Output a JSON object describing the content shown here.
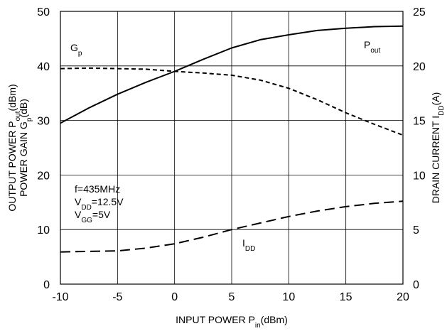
{
  "chart_data": {
    "type": "line",
    "xlabel": {
      "main": "INPUT POWER P",
      "sub": "in",
      "unit": "(dBm)"
    },
    "ylabel_left": {
      "line1": {
        "main": "OUTPUT POWER P",
        "sub": "out",
        "unit": "(dBm)"
      },
      "line2": {
        "main": "POWER GAIN G",
        "sub": "p",
        "unit": "(dB)"
      }
    },
    "ylabel_right": {
      "main": "DRAIN CURRENT I",
      "sub": "DD",
      "unit": "(A)"
    },
    "xlim": [
      -10,
      20
    ],
    "ylim_left": [
      0,
      50
    ],
    "ylim_right": [
      0,
      25
    ],
    "x_ticks": [
      "-10",
      "-5",
      "0",
      "5",
      "10",
      "15",
      "20"
    ],
    "y_left_ticks": [
      "0",
      "10",
      "20",
      "30",
      "40",
      "50"
    ],
    "y_right_ticks": [
      "0",
      "5",
      "10",
      "15",
      "20",
      "25"
    ],
    "grid": true,
    "series": [
      {
        "name": {
          "main": "P",
          "sub": "out"
        },
        "axis": "left",
        "style": "solid",
        "x": [
          -10,
          -7.5,
          -5,
          -2.5,
          0,
          2.5,
          5,
          7.5,
          10,
          12.5,
          15,
          17.5,
          20
        ],
        "y": [
          29.5,
          32.3,
          34.8,
          37.0,
          39.0,
          41.2,
          43.3,
          44.8,
          45.7,
          46.5,
          46.9,
          47.2,
          47.3
        ]
      },
      {
        "name": {
          "main": "G",
          "sub": "p"
        },
        "axis": "left",
        "style": "short-dash",
        "x": [
          -10,
          -7.5,
          -5,
          -2.5,
          0,
          2.5,
          5,
          7.5,
          10,
          12.5,
          15,
          17.5,
          20
        ],
        "y": [
          39.5,
          39.6,
          39.5,
          39.4,
          39.0,
          38.7,
          38.3,
          37.4,
          35.9,
          33.8,
          31.4,
          29.3,
          27.3
        ]
      },
      {
        "name": {
          "main": "I",
          "sub": "DD"
        },
        "axis": "right",
        "style": "long-dash",
        "x": [
          -10,
          -7.5,
          -5,
          -2.5,
          0,
          2.5,
          5,
          7.5,
          10,
          12.5,
          15,
          17.5,
          20
        ],
        "y": [
          2.95,
          3.0,
          3.05,
          3.3,
          3.7,
          4.3,
          5.0,
          5.6,
          6.2,
          6.7,
          7.1,
          7.4,
          7.6
        ]
      }
    ],
    "conditions": [
      {
        "main": "f=435MHz",
        "sub": "",
        "tail": ""
      },
      {
        "main": "V",
        "sub": "DD",
        "tail": "=12.5V"
      },
      {
        "main": "V",
        "sub": "GG",
        "tail": "=5V"
      }
    ]
  }
}
